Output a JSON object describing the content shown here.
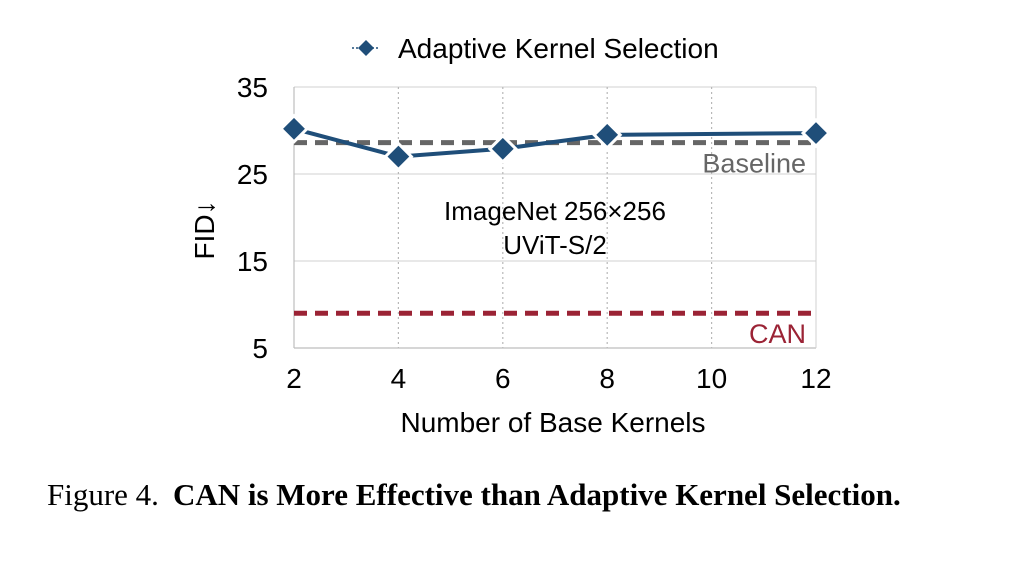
{
  "chart_data": {
    "type": "line",
    "legend": "top",
    "grid": true,
    "xlabel": "Number of Base Kernels",
    "ylabel": "FID↓",
    "x": [
      2,
      4,
      6,
      8,
      10,
      12
    ],
    "x_ticks": [
      "2",
      "4",
      "6",
      "8",
      "10",
      "12"
    ],
    "ylim": [
      5,
      35
    ],
    "y_ticks": [
      "35",
      "25",
      "15",
      "5"
    ],
    "y_tick_values": [
      35,
      25,
      15,
      5
    ],
    "series": [
      {
        "name": "Adaptive Kernel Selection",
        "x": [
          2,
          4,
          6,
          8,
          12
        ],
        "y": [
          30.2,
          27.0,
          27.9,
          29.5,
          29.7
        ],
        "color": "#1f4e79"
      }
    ],
    "reference_lines": [
      {
        "label": "Baseline",
        "y": 28.6,
        "color": "#666666"
      },
      {
        "label": "CAN",
        "y": 9.0,
        "color": "#9b2335"
      }
    ],
    "annotation": [
      "ImageNet 256×256",
      "UViT-S/2"
    ]
  },
  "caption": {
    "lead": "Figure 4.",
    "title": "CAN is More Effective than Adaptive Kernel Selection."
  }
}
